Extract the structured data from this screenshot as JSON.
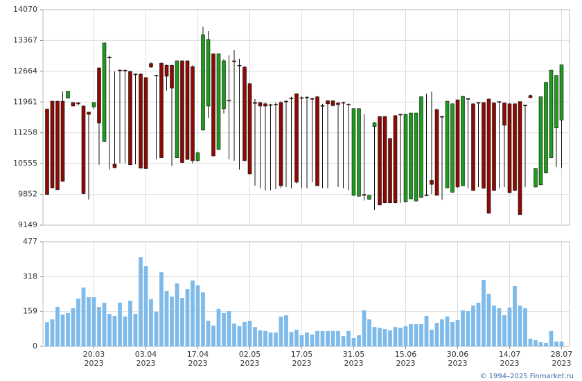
{
  "chart_data": [
    {
      "type": "candlestick",
      "up_color": "#1f9a1f",
      "down_color": "#8b0b04",
      "edge_color": "#111",
      "ylim": [
        9149,
        14070
      ],
      "yticks": [
        9149,
        9852,
        10555,
        11258,
        11961,
        12664,
        13367,
        14070
      ],
      "grid": true,
      "open": [
        11800,
        11980,
        11980,
        11980,
        12050,
        11950,
        11940,
        11870,
        11730,
        11850,
        12740,
        11060,
        12990,
        10540,
        12690,
        12690,
        12660,
        12600,
        12600,
        12520,
        12840,
        12570,
        12850,
        12800,
        12800,
        10690,
        12900,
        12900,
        12770,
        10620,
        11320,
        11870,
        13060,
        10880,
        11810,
        12000,
        12900,
        12800,
        12760,
        12380,
        11950,
        11950,
        11920,
        11900,
        11910,
        11950,
        11980,
        12050,
        12150,
        12060,
        12070,
        12040,
        12080,
        11880,
        11990,
        11990,
        11940,
        11950,
        11910,
        9830,
        9810,
        9850,
        9740,
        11400,
        11630,
        11630,
        11130,
        11650,
        11680,
        9680,
        9750,
        9700,
        9780,
        9840,
        10170,
        11790,
        11630,
        10000,
        9900,
        12010,
        10050,
        12040,
        11920,
        11950,
        11950,
        12030,
        11940,
        11970,
        11940,
        11920,
        11920,
        11970,
        11890,
        12110,
        10020,
        10070,
        10340,
        10690,
        11370,
        11550
      ],
      "high": [
        11810,
        11990,
        11990,
        12200,
        12210,
        11960,
        11960,
        11880,
        11740,
        11960,
        12750,
        13320,
        13020,
        12660,
        12710,
        12700,
        12670,
        12610,
        12610,
        12530,
        12870,
        12580,
        12860,
        12820,
        12810,
        12910,
        12910,
        12910,
        12800,
        10830,
        13680,
        13580,
        13070,
        13070,
        12940,
        13030,
        13150,
        12950,
        12780,
        12400,
        12030,
        11960,
        11950,
        11920,
        11950,
        11980,
        12000,
        12080,
        12160,
        12090,
        12100,
        12060,
        12100,
        11920,
        12000,
        12000,
        11950,
        11970,
        11930,
        11820,
        11820,
        11680,
        9840,
        11500,
        11640,
        11640,
        11140,
        11660,
        11690,
        11690,
        11720,
        11720,
        12090,
        12150,
        12200,
        11810,
        11650,
        11990,
        11930,
        12020,
        12100,
        12050,
        11930,
        11960,
        11960,
        12040,
        11950,
        11980,
        11950,
        11930,
        11930,
        11980,
        11900,
        12130,
        10450,
        12090,
        12420,
        12700,
        12580,
        12810
      ],
      "low": [
        9840,
        9990,
        9950,
        10140,
        12040,
        11860,
        11880,
        9860,
        9730,
        11800,
        10530,
        11050,
        10420,
        10450,
        10570,
        10570,
        10520,
        10540,
        10440,
        10430,
        12740,
        10650,
        10680,
        12220,
        10500,
        10680,
        10570,
        10640,
        10560,
        10600,
        11310,
        11600,
        10720,
        10870,
        11700,
        10650,
        10620,
        10420,
        10610,
        10310,
        10050,
        9990,
        9940,
        9940,
        9970,
        10000,
        10020,
        9990,
        10100,
        9990,
        9990,
        10130,
        10040,
        9990,
        9990,
        11860,
        10020,
        9990,
        9940,
        9820,
        9800,
        9710,
        9720,
        9500,
        9600,
        9650,
        9650,
        9650,
        9660,
        9670,
        9740,
        9690,
        9770,
        9810,
        9860,
        9820,
        9730,
        9990,
        9890,
        10010,
        10040,
        9990,
        9930,
        10020,
        9980,
        9410,
        9930,
        9990,
        10020,
        9880,
        9930,
        9380,
        10020,
        12050,
        10010,
        10060,
        10330,
        10680,
        10480,
        10460
      ],
      "close": [
        9850,
        10000,
        9960,
        10150,
        12210,
        11870,
        11920,
        9870,
        11680,
        11950,
        11480,
        13310,
        12970,
        10460,
        12680,
        12670,
        10530,
        12590,
        10450,
        10440,
        12760,
        12560,
        10690,
        12550,
        12280,
        12900,
        10580,
        10650,
        10620,
        10800,
        13500,
        13390,
        10730,
        13060,
        12900,
        11990,
        12890,
        12790,
        10620,
        10320,
        11930,
        11870,
        11870,
        11890,
        11900,
        10050,
        11970,
        12040,
        10130,
        12050,
        12060,
        12030,
        10050,
        11870,
        11920,
        11880,
        11900,
        11940,
        11900,
        11810,
        11810,
        9830,
        9830,
        11490,
        9610,
        9660,
        9660,
        9660,
        11670,
        11680,
        11710,
        11710,
        12080,
        9830,
        10080,
        9830,
        11620,
        11980,
        11920,
        10020,
        12090,
        12030,
        9940,
        11940,
        9990,
        9420,
        9940,
        11960,
        11430,
        9890,
        9940,
        9390,
        11880,
        12060,
        10440,
        12080,
        12410,
        12690,
        12570,
        12810
      ]
    },
    {
      "type": "bar",
      "color": "#7fbbea",
      "ylim": [
        0,
        477
      ],
      "yticks": [
        0,
        159,
        318,
        477
      ],
      "grid": true,
      "values": [
        110,
        123,
        180,
        145,
        152,
        174,
        218,
        268,
        224,
        224,
        180,
        199,
        148,
        139,
        199,
        136,
        208,
        148,
        407,
        366,
        215,
        158,
        338,
        253,
        227,
        287,
        221,
        262,
        300,
        278,
        246,
        117,
        95,
        171,
        152,
        161,
        104,
        92,
        111,
        117,
        88,
        73,
        70,
        63,
        63,
        136,
        142,
        66,
        76,
        51,
        63,
        54,
        70,
        70,
        70,
        70,
        70,
        47,
        70,
        38,
        51,
        164,
        123,
        88,
        85,
        79,
        73,
        88,
        85,
        92,
        101,
        101,
        101,
        139,
        76,
        107,
        123,
        136,
        111,
        120,
        164,
        161,
        186,
        199,
        303,
        240,
        186,
        174,
        142,
        177,
        275,
        186,
        174,
        35,
        28,
        19,
        16,
        70,
        22,
        22
      ],
      "categories": [
        null,
        null,
        null,
        null,
        null,
        null,
        null,
        null,
        null,
        "20.03",
        null,
        null,
        null,
        null,
        null,
        null,
        null,
        null,
        null,
        "03.04",
        null,
        null,
        null,
        null,
        null,
        null,
        null,
        null,
        null,
        "17.04",
        null,
        null,
        null,
        null,
        null,
        null,
        null,
        null,
        null,
        "02.05",
        null,
        null,
        null,
        null,
        null,
        null,
        null,
        null,
        null,
        "17.05",
        null,
        null,
        null,
        null,
        null,
        null,
        null,
        null,
        null,
        "31.05",
        null,
        null,
        null,
        null,
        null,
        null,
        null,
        null,
        null,
        "15.06",
        null,
        null,
        null,
        null,
        null,
        null,
        null,
        null,
        null,
        "30.06",
        null,
        null,
        null,
        null,
        null,
        null,
        null,
        null,
        null,
        "14.07",
        null,
        null,
        null,
        null,
        null,
        null,
        null,
        null,
        null,
        "28.07"
      ],
      "category_years": [
        null,
        null,
        null,
        null,
        null,
        null,
        null,
        null,
        null,
        "2023",
        null,
        null,
        null,
        null,
        null,
        null,
        null,
        null,
        null,
        "2023",
        null,
        null,
        null,
        null,
        null,
        null,
        null,
        null,
        null,
        "2023",
        null,
        null,
        null,
        null,
        null,
        null,
        null,
        null,
        null,
        "2023",
        null,
        null,
        null,
        null,
        null,
        null,
        null,
        null,
        null,
        "2023",
        null,
        null,
        null,
        null,
        null,
        null,
        null,
        null,
        null,
        "2023",
        null,
        null,
        null,
        null,
        null,
        null,
        null,
        null,
        null,
        "2023",
        null,
        null,
        null,
        null,
        null,
        null,
        null,
        null,
        null,
        "2023",
        null,
        null,
        null,
        null,
        null,
        null,
        null,
        null,
        null,
        "2023",
        null,
        null,
        null,
        null,
        null,
        null,
        null,
        null,
        null,
        "2023"
      ]
    }
  ],
  "footer": "© 1994–2025 Finmarket.ru"
}
